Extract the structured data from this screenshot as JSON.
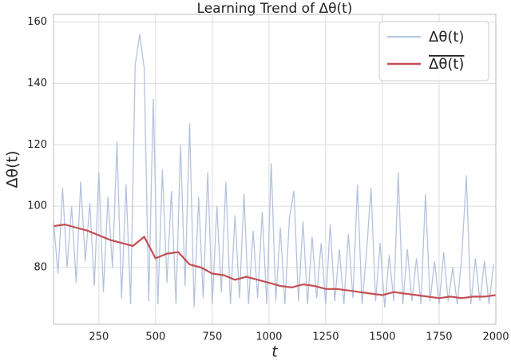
{
  "chart_data": {
    "type": "line",
    "title": "Learning Trend of Δθ(t)",
    "xlabel": "t",
    "ylabel": "Δθ(t)",
    "xlim": [
      50,
      2000
    ],
    "xticks": [
      250,
      500,
      750,
      1000,
      1250,
      1500,
      1750,
      2000
    ],
    "ylim": [
      61.5,
      162.5
    ],
    "yticks": [
      80,
      100,
      120,
      140,
      160
    ],
    "grid": true,
    "legend": "upper right",
    "series": [
      {
        "name": "Δθ(t)",
        "color": "#b4c3de",
        "x": [
          50,
          70,
          90,
          110,
          130,
          150,
          170,
          190,
          210,
          230,
          250,
          270,
          290,
          310,
          330,
          350,
          370,
          390,
          410,
          430,
          450,
          470,
          490,
          510,
          530,
          550,
          570,
          590,
          610,
          630,
          650,
          670,
          690,
          710,
          730,
          750,
          770,
          790,
          810,
          830,
          850,
          870,
          890,
          910,
          930,
          950,
          970,
          990,
          1010,
          1030,
          1050,
          1070,
          1090,
          1110,
          1130,
          1150,
          1170,
          1190,
          1210,
          1230,
          1250,
          1270,
          1290,
          1310,
          1330,
          1350,
          1370,
          1390,
          1410,
          1430,
          1450,
          1470,
          1490,
          1510,
          1530,
          1550,
          1570,
          1590,
          1610,
          1630,
          1650,
          1670,
          1690,
          1710,
          1730,
          1750,
          1770,
          1790,
          1810,
          1830,
          1850,
          1870,
          1890,
          1910,
          1930,
          1950,
          1970,
          1990
        ],
        "values": [
          95,
          78,
          106,
          80,
          100,
          75,
          108,
          82,
          101,
          74,
          111,
          72,
          103,
          80,
          121,
          70,
          107,
          68,
          146,
          156,
          145,
          69,
          135,
          68,
          112,
          75,
          105,
          68,
          120,
          74,
          127,
          67,
          103,
          70,
          111,
          68,
          100,
          72,
          108,
          68,
          97,
          70,
          104,
          68,
          92,
          70,
          98,
          68,
          114,
          69,
          93,
          68,
          96,
          105,
          69,
          95,
          68,
          90,
          70,
          88,
          68,
          94,
          69,
          86,
          68,
          91,
          70,
          107,
          68,
          85,
          106,
          69,
          88,
          67,
          84,
          69,
          111,
          68,
          86,
          69,
          83,
          68,
          104,
          69,
          82,
          68,
          85,
          69,
          80,
          68,
          84,
          110,
          68,
          83,
          69,
          82,
          68,
          81
        ]
      },
      {
        "name": "Δθ(t)",
        "color": "#c44e52",
        "x": [
          50,
          100,
          150,
          200,
          250,
          300,
          350,
          400,
          450,
          500,
          550,
          600,
          650,
          700,
          750,
          800,
          850,
          900,
          950,
          1000,
          1050,
          1100,
          1150,
          1200,
          1250,
          1300,
          1350,
          1400,
          1450,
          1500,
          1550,
          1600,
          1650,
          1700,
          1750,
          1800,
          1850,
          1900,
          1950,
          2000
        ],
        "values": [
          93.5,
          94,
          93,
          92,
          90.5,
          89,
          88,
          87,
          90,
          83,
          84.5,
          85,
          81,
          80,
          78,
          77.5,
          76,
          77,
          76,
          75,
          74,
          73.5,
          74.5,
          74,
          73,
          73,
          72.5,
          72,
          71.5,
          71,
          72,
          71.5,
          71,
          70.5,
          70,
          70.5,
          70,
          70.5,
          70.5,
          71
        ]
      }
    ]
  }
}
